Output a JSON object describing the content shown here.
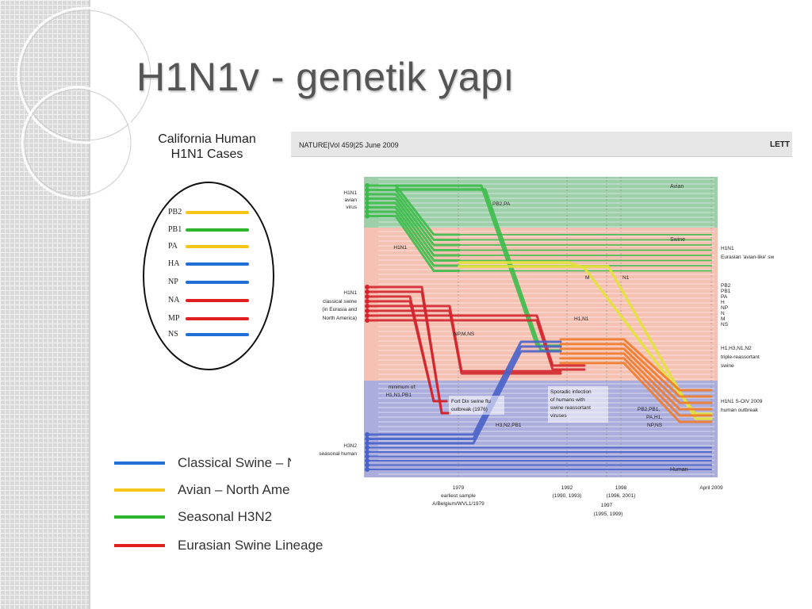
{
  "slide": {
    "title": "H1N1v - genetik yapı"
  },
  "california": {
    "title_line1": "California Human",
    "title_line2": "H1N1 Cases",
    "segments": [
      {
        "label": "PB2",
        "color": "#f5c518"
      },
      {
        "label": "PB1",
        "color": "#2db52d"
      },
      {
        "label": "PA",
        "color": "#f5c518"
      },
      {
        "label": "HA",
        "color": "#1f6fd6"
      },
      {
        "label": "NP",
        "color": "#1f6fd6"
      },
      {
        "label": "NA",
        "color": "#e02020"
      },
      {
        "label": "MP",
        "color": "#e02020"
      },
      {
        "label": "NS",
        "color": "#1f6fd6"
      }
    ]
  },
  "legend": [
    {
      "label": "Classical Swine – N",
      "color": "#1f6fd6"
    },
    {
      "label": "Avian – North Ame",
      "color": "#f5c518"
    },
    {
      "label": "Seasonal H3N2",
      "color": "#2db52d"
    },
    {
      "label": "Eurasian Swine Lineage",
      "color": "#e02020"
    }
  ],
  "figure": {
    "citation": "NATURE|Vol 459|25 June 2009",
    "header_right": "LETT",
    "band_labels": {
      "avian": "Avian",
      "swine": "Swine",
      "human": "Human"
    },
    "left_labels": {
      "h1n1_avian": [
        "H1N1",
        "avian",
        "virus"
      ],
      "h1n1": "H1N1",
      "h1n1_classical": [
        "H1N1",
        "classical swine",
        "(in Eurasia and",
        "North America)"
      ],
      "minimum": [
        "minimum of:",
        "H1,N1,PB1"
      ],
      "h3n2": [
        "H3N2",
        "seasonal human"
      ]
    },
    "inner_labels": {
      "pb2_pa": "PB2,PA",
      "m": "M",
      "n1": "N1",
      "h1_n1": "H1,N1",
      "np_m_ns": "NP,M,NS",
      "h3_n2_pb1": "H3,N2,PB1",
      "fort_dix": [
        "Fort Dix swine flu",
        "outbreak (1976)"
      ],
      "sporadic": [
        "Sporadic infection",
        "of humans with",
        "swine reassortant",
        "viruses"
      ],
      "pb2_group": [
        "PB2,PB1,",
        "PA,H1,",
        "NP,NS"
      ]
    },
    "right_labels": {
      "eurasian": [
        "H1N1",
        "Eurasian 'avian-like' sw"
      ],
      "genes": [
        "PB2",
        "PB1",
        "PA",
        "H",
        "NP",
        "N",
        "M",
        "NS"
      ],
      "triple": [
        "H1,H3,N1,N2",
        "triple-reassortant",
        "swine"
      ],
      "soiv": [
        "H1N1 S-OIV 2009",
        "human outbreak"
      ]
    },
    "time_axis": [
      {
        "lines": [
          "1979",
          "earliest sample",
          "A/Belgium/WVL1/1979"
        ]
      },
      {
        "lines": [
          "1992",
          "(1990, 1993)"
        ]
      },
      {
        "lines": [
          "1998",
          "(1996, 2001)",
          "1997",
          "(1995, 1999)"
        ]
      },
      {
        "lines": [
          "April 2009"
        ]
      }
    ],
    "colors": {
      "avian_band": "#8cc79a",
      "swine_band": "#f3b6a6",
      "human_band": "#9c9fd6",
      "green": "#3dbb4a",
      "yellow": "#e3e23a",
      "red": "#d2262e",
      "blue": "#4a63c8",
      "orange": "#f07a2a"
    }
  }
}
